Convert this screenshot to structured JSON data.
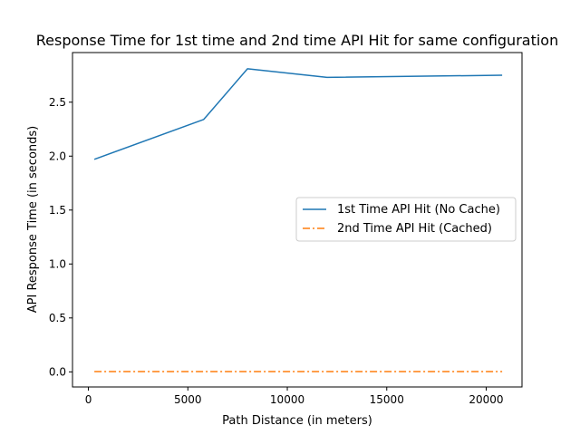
{
  "chart_data": {
    "type": "line",
    "title": "Response Time for 1st time and 2nd time API Hit for same configuration",
    "xlabel": "Path Distance (in meters)",
    "ylabel": "API Response Time (in seconds)",
    "xlim": [
      -800,
      21800
    ],
    "ylim": [
      -0.14,
      2.96
    ],
    "xticks": [
      0,
      5000,
      10000,
      15000,
      20000
    ],
    "xtick_labels": [
      "0",
      "5000",
      "10000",
      "15000",
      "20000"
    ],
    "yticks": [
      0.0,
      0.5,
      1.0,
      1.5,
      2.0,
      2.5
    ],
    "ytick_labels": [
      "0.0",
      "0.5",
      "1.0",
      "1.5",
      "2.0",
      "2.5"
    ],
    "grid": false,
    "legend_position": "center-right",
    "series": [
      {
        "name": "1st Time API Hit (No Cache)",
        "color": "#1f77b4",
        "linestyle": "solid",
        "x": [
          300,
          5800,
          8000,
          12000,
          20800
        ],
        "y": [
          1.97,
          2.34,
          2.81,
          2.73,
          2.75
        ]
      },
      {
        "name": "2nd Time API Hit (Cached)",
        "color": "#ff7f0e",
        "linestyle": "dashdot",
        "x": [
          300,
          5800,
          8000,
          12000,
          20800
        ],
        "y": [
          0.003,
          0.003,
          0.003,
          0.003,
          0.003
        ]
      }
    ]
  }
}
